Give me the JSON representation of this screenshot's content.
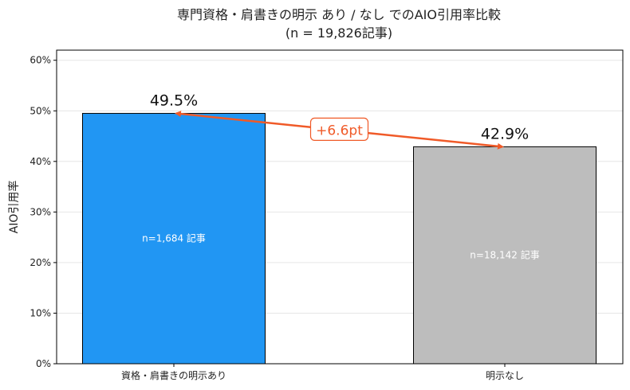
{
  "chart_data": {
    "type": "bar",
    "title_line1": "専門資格・肩書きの明示 あり / なし でのAIO引用率比較",
    "title_line2": "(n = 19,826記事)",
    "ylabel": "AIO引用率",
    "xlabel": "",
    "categories": [
      "資格・肩書きの明示あり",
      "明示なし"
    ],
    "values": [
      49.5,
      42.9
    ],
    "value_labels": [
      "49.5%",
      "42.9%"
    ],
    "inner_labels": [
      "n=1,684 記事",
      "n=18,142 記事"
    ],
    "bar_colors": [
      "#2196f3",
      "#bdbdbd"
    ],
    "ylim": [
      0,
      62
    ],
    "yticks": [
      0,
      10,
      20,
      30,
      40,
      50,
      60
    ],
    "ytick_labels": [
      "0%",
      "10%",
      "20%",
      "30%",
      "40%",
      "50%",
      "60%"
    ],
    "grid": true,
    "annotation": {
      "text": "+6.6pt",
      "color": "#f05a28"
    }
  }
}
